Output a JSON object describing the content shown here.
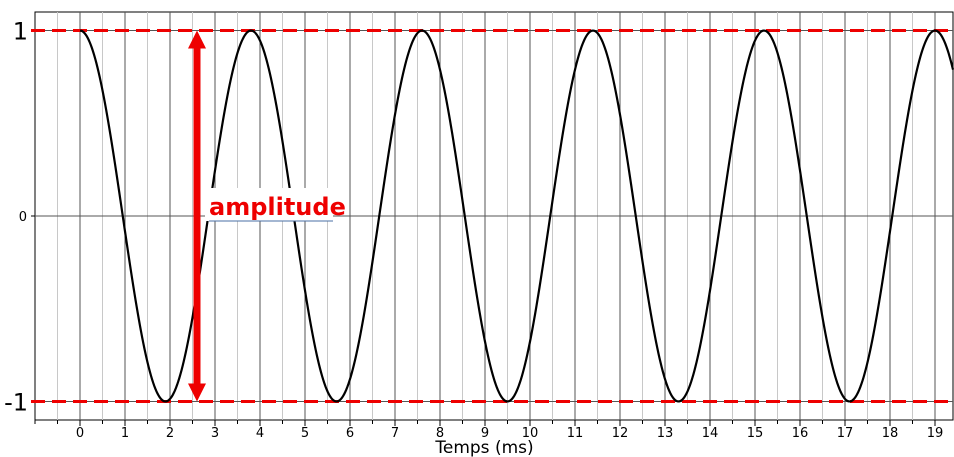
{
  "chart_data": {
    "type": "line",
    "title": "",
    "xlabel": "Temps (ms)",
    "ylabel": "",
    "xlim": [
      -1,
      19.4
    ],
    "ylim": [
      -1.1,
      1.1
    ],
    "x_ticks": [
      0,
      1,
      2,
      3,
      4,
      5,
      6,
      7,
      8,
      9,
      10,
      11,
      12,
      13,
      14,
      15,
      16,
      17,
      18,
      19
    ],
    "y_ticks": [
      {
        "value": 1,
        "label": "1"
      },
      {
        "value": 0,
        "label": "0"
      },
      {
        "value": -1,
        "label": "-1"
      }
    ],
    "grid": true,
    "series": [
      {
        "color": "#000000",
        "function": "cos",
        "amplitude": 1,
        "period_ms": 3.8,
        "phase_ms": 0,
        "x_start": 0,
        "x_end": 19.4
      }
    ],
    "reference_lines": [
      {
        "y": 1,
        "color": "#ee0000",
        "style": "dashed"
      },
      {
        "y": -1,
        "color": "#ee0000",
        "style": "dashed"
      }
    ],
    "annotations": [
      {
        "text": "amplitude",
        "x": 2.6,
        "y_from": -1,
        "y_to": 1,
        "color": "#ee0000"
      }
    ]
  }
}
